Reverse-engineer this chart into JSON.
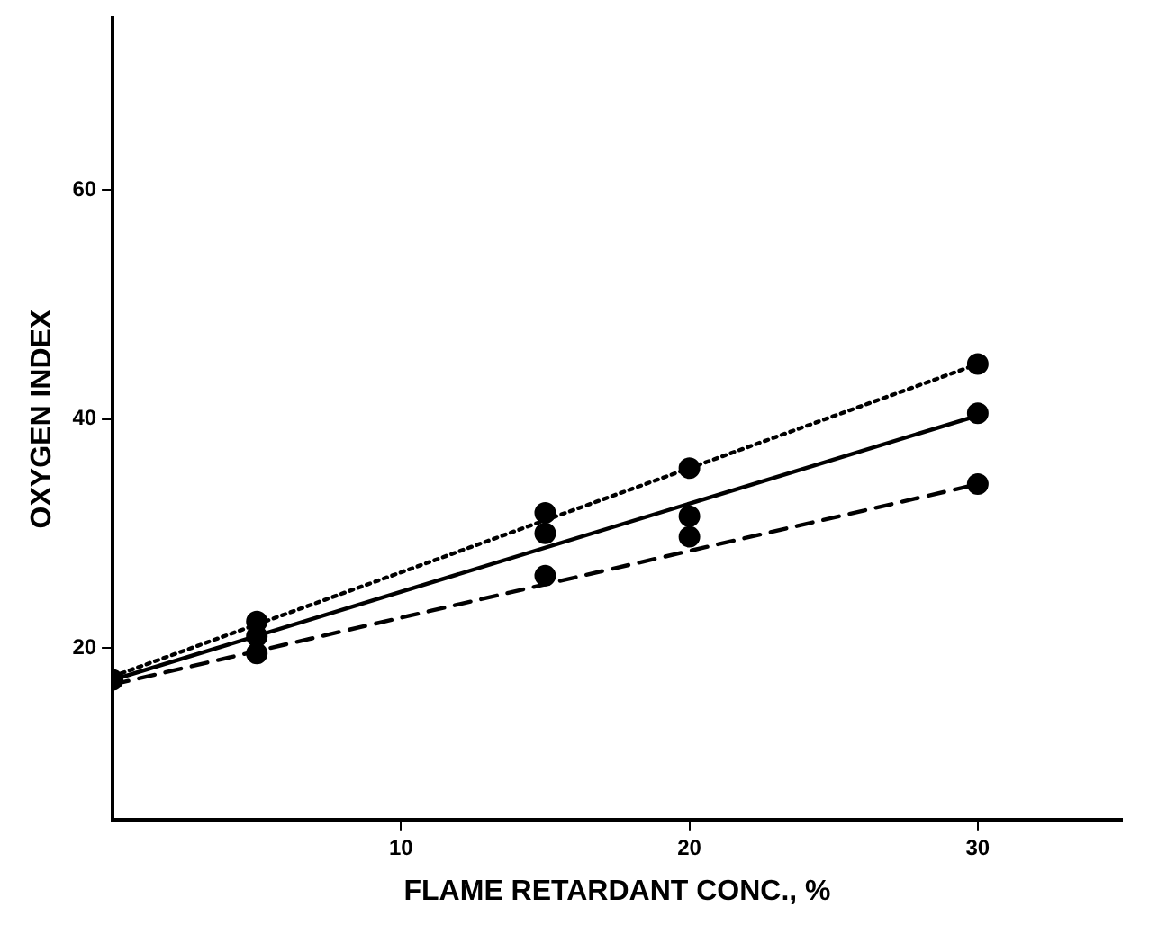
{
  "chart_data": {
    "type": "line",
    "xlabel": "FLAME RETARDANT CONC., %",
    "ylabel": "OXYGEN INDEX",
    "xlim": [
      0,
      35
    ],
    "xticks": [
      10,
      20,
      30
    ],
    "ylim": [
      5,
      75
    ],
    "yticks": [
      20,
      40,
      60
    ],
    "grid": false,
    "legend": false,
    "series": [
      {
        "type": "line",
        "color": "#000000",
        "line_style": "dotted",
        "marker": "none",
        "x": [
          0,
          30
        ],
        "values": [
          17.5,
          44.8
        ]
      },
      {
        "type": "line",
        "color": "#000000",
        "line_style": "solid",
        "marker": "none",
        "x": [
          0,
          30
        ],
        "values": [
          17.2,
          40.3
        ]
      },
      {
        "type": "line",
        "color": "#000000",
        "line_style": "dashed",
        "marker": "none",
        "x": [
          0,
          30
        ],
        "values": [
          16.8,
          34.3
        ]
      },
      {
        "type": "scatter",
        "color": "#000000",
        "marker": "circle",
        "x": [
          0,
          5,
          5,
          5,
          15,
          15,
          15,
          20,
          20,
          20,
          30,
          30,
          30
        ],
        "values": [
          17.2,
          22.3,
          21,
          19.5,
          31.8,
          30,
          26.3,
          35.7,
          31.5,
          29.7,
          44.8,
          40.5,
          34.3
        ]
      }
    ]
  }
}
